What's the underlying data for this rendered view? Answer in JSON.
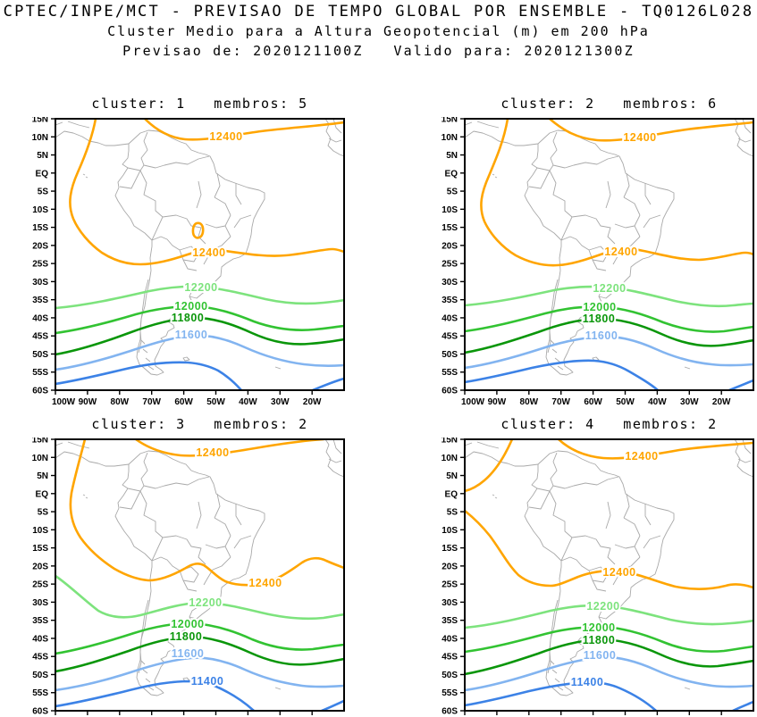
{
  "header": {
    "line1": "CPTEC/INPE/MCT - PREVISAO DE TEMPO GLOBAL POR ENSEMBLE - TQ0126L028",
    "line2": "Cluster Medio para a Altura Geopotencial (m) em 200 hPa",
    "line3": "Previsao de: 2020121100Z   Valido para: 2020121300Z"
  },
  "axes": {
    "lat_labels": [
      "15N",
      "10N",
      "5N",
      "EQ",
      "5S",
      "10S",
      "15S",
      "20S",
      "25S",
      "30S",
      "35S",
      "40S",
      "45S",
      "50S",
      "55S",
      "60S"
    ],
    "lon_labels": [
      "100W",
      "90W",
      "80W",
      "70W",
      "60W",
      "50W",
      "40W",
      "30W",
      "20W"
    ]
  },
  "colors": {
    "levels": {
      "12400": "#FFA500",
      "12200": "#7DE37D",
      "12000": "#32C332",
      "11800": "#0A960A",
      "11600": "#82B4F0",
      "11400": "#3C82E6"
    },
    "map_outline": "#A9A9A9",
    "frame": "#000000"
  },
  "panels": [
    {
      "id": 1,
      "title": "cluster: 1   membros: 5",
      "cluster": "1",
      "membros": "5",
      "contour_labels": [
        "12400",
        "12400",
        "12200",
        "12000",
        "11800",
        "11600"
      ]
    },
    {
      "id": 2,
      "title": "cluster: 2   membros: 6",
      "cluster": "2",
      "membros": "6",
      "contour_labels": [
        "12400",
        "12400",
        "12200",
        "12000",
        "11800",
        "11600"
      ]
    },
    {
      "id": 3,
      "title": "cluster: 3   membros: 2",
      "cluster": "3",
      "membros": "2",
      "contour_labels": [
        "12400",
        "12400",
        "12200",
        "12000",
        "11800",
        "11600",
        "11400"
      ]
    },
    {
      "id": 4,
      "title": "cluster: 4   membros: 2",
      "cluster": "4",
      "membros": "2",
      "contour_labels": [
        "12400",
        "12400",
        "12200",
        "12000",
        "11800",
        "11600",
        "11400"
      ]
    }
  ],
  "chart_data": [
    {
      "type": "contour-map",
      "title": "cluster: 1   membros: 5",
      "cluster": 1,
      "members": 5,
      "field": "Cluster-mean geopotential height (m) at 200 hPa",
      "lon_ticks": [
        "100W",
        "90W",
        "80W",
        "70W",
        "60W",
        "50W",
        "40W",
        "30W",
        "20W"
      ],
      "lat_ticks": [
        "15N",
        "10N",
        "5N",
        "EQ",
        "5S",
        "10S",
        "15S",
        "20S",
        "25S",
        "30S",
        "35S",
        "40S",
        "45S",
        "50S",
        "55S",
        "60S"
      ],
      "contours_m": [
        {
          "level": 12400,
          "branch": "tropical-north",
          "labeled": true,
          "approx_path": "10N at 60W rising toward NE corner; western branch curls from 88W/15N south to 95W/7S then SE to subtropics"
        },
        {
          "level": 12400,
          "branch": "subtropical",
          "labeled": true,
          "approx_path": "25S at 80W, 22S at 55W (label), 22S at 10W"
        },
        {
          "level": 12400,
          "branch": "closed-cell",
          "labeled": false,
          "approx_path": "tiny closed contour near 56W, 16S"
        },
        {
          "level": 12200,
          "labeled": true,
          "approx_path": "37S at 100W, 31S at 60W, 35S at 10W"
        },
        {
          "level": 12000,
          "labeled": true,
          "approx_path": "44S at 100W, 37S at 60W, 42S at 10W"
        },
        {
          "level": 11800,
          "labeled": true,
          "approx_path": "50S at 100W, 40S at 60W, 46S at 10W"
        },
        {
          "level": 11600,
          "labeled": true,
          "approx_path": "54S at 100W, 45S at 60W, 53S at 10W"
        },
        {
          "level": 11400,
          "labeled": false,
          "approx_path": "58S at 100W, 52S at 62W, exits south edge near 48W; reappears SE corner"
        }
      ]
    },
    {
      "type": "contour-map",
      "title": "cluster: 2   membros: 6",
      "cluster": 2,
      "members": 6,
      "field": "Cluster-mean geopotential height (m) at 200 hPa",
      "lon_ticks": [
        "100W",
        "90W",
        "80W",
        "70W",
        "60W",
        "50W",
        "40W",
        "30W",
        "20W"
      ],
      "lat_ticks": [
        "15N",
        "10N",
        "5N",
        "EQ",
        "5S",
        "10S",
        "15S",
        "20S",
        "25S",
        "30S",
        "35S",
        "40S",
        "45S",
        "50S",
        "55S",
        "60S"
      ],
      "contours_m": [
        {
          "level": 12400,
          "branch": "tropical-north",
          "labeled": true,
          "approx_path": "10N at 60W rising toward NE corner; western branch curls from 87W/15N to 95W/8S then SE"
        },
        {
          "level": 12400,
          "branch": "subtropical",
          "labeled": true,
          "approx_path": "24S at 75W, 22S at 52W (label), 23S at 10W"
        },
        {
          "level": 12200,
          "labeled": true,
          "approx_path": "37S at 100W, 32S at 60W, 36S at 10W"
        },
        {
          "level": 12000,
          "labeled": true,
          "approx_path": "44S at 100W, 37S at 60W, 42S at 10W"
        },
        {
          "level": 11800,
          "labeled": true,
          "approx_path": "50S at 100W, 40S at 60W, 46S at 10W"
        },
        {
          "level": 11600,
          "labeled": true,
          "approx_path": "54S at 100W, 45S at 60W, 53S at 10W"
        },
        {
          "level": 11400,
          "labeled": false,
          "approx_path": "58S at 100W, 52S at 60W, exits south edge near 40W"
        }
      ]
    },
    {
      "type": "contour-map",
      "title": "cluster: 3   membros: 2",
      "cluster": 3,
      "members": 2,
      "field": "Cluster-mean geopotential height (m) at 200 hPa",
      "lon_ticks": [
        "100W",
        "90W",
        "80W",
        "70W",
        "60W",
        "50W",
        "40W",
        "30W",
        "20W"
      ],
      "lat_ticks": [
        "15N",
        "10N",
        "5N",
        "EQ",
        "5S",
        "10S",
        "15S",
        "20S",
        "25S",
        "30S",
        "35S",
        "40S",
        "45S",
        "50S",
        "55S",
        "60S"
      ],
      "contours_m": [
        {
          "level": 12400,
          "branch": "tropical-north",
          "labeled": true,
          "approx_path": "11N at 60W, label near 53W/11N, reaches top edge near 25W"
        },
        {
          "level": 12400,
          "branch": "subtropical",
          "labeled": true,
          "approx_path": "24S at 70W, bump 19S at 55W, 25S at 35W (label), hump 18S near 18W"
        },
        {
          "level": 12200,
          "labeled": true,
          "approx_path": "23S at 100W dipping to 34S at 80W, 30S at 55W, 34S at 10W"
        },
        {
          "level": 12000,
          "labeled": true,
          "approx_path": "44S at 100W, 36S at 60W, 42S at 10W"
        },
        {
          "level": 11800,
          "labeled": true,
          "approx_path": "49S at 100W, 40S at 60W, 46S at 10W"
        },
        {
          "level": 11600,
          "labeled": true,
          "approx_path": "54S at 100W, 45S at 60W, 53S at 10W"
        },
        {
          "level": 11400,
          "labeled": true,
          "approx_path": "59S at 100W, 52S at 60W (label), exits south edge near 40W"
        }
      ]
    },
    {
      "type": "contour-map",
      "title": "cluster: 4   membros: 2",
      "cluster": 4,
      "members": 2,
      "field": "Cluster-mean geopotential height (m) at 200 hPa",
      "lon_ticks": [
        "100W",
        "90W",
        "80W",
        "70W",
        "60W",
        "50W",
        "40W",
        "30W",
        "20W"
      ],
      "lat_ticks": [
        "15N",
        "10N",
        "5N",
        "EQ",
        "5S",
        "10S",
        "15S",
        "20S",
        "25S",
        "30S",
        "35S",
        "40S",
        "45S",
        "50S",
        "55S",
        "60S"
      ],
      "contours_m": [
        {
          "level": 12400,
          "branch": "tropical-north",
          "labeled": true,
          "approx_path": "10N at 60W rising toward NE corner; western branch exits left edge near EQ and re-enters near 5S"
        },
        {
          "level": 12400,
          "branch": "subtropical",
          "labeled": true,
          "approx_path": "25S at 73W, 22S at 52W (label), 26S at 10W"
        },
        {
          "level": 12200,
          "labeled": true,
          "approx_path": "37S at 100W, 31S at 57W, 35S at 10W"
        },
        {
          "level": 12000,
          "labeled": true,
          "approx_path": "44S at 100W, 37S at 60W, 42S at 10W"
        },
        {
          "level": 11800,
          "labeled": true,
          "approx_path": "50S at 100W, 40S at 60W, 46S at 10W"
        },
        {
          "level": 11600,
          "labeled": true,
          "approx_path": "54S at 100W, 45S at 60W, 53S at 10W"
        },
        {
          "level": 11400,
          "labeled": true,
          "approx_path": "59S at 100W, 54S at 62W (label), exits south edge near 47W"
        }
      ]
    }
  ]
}
